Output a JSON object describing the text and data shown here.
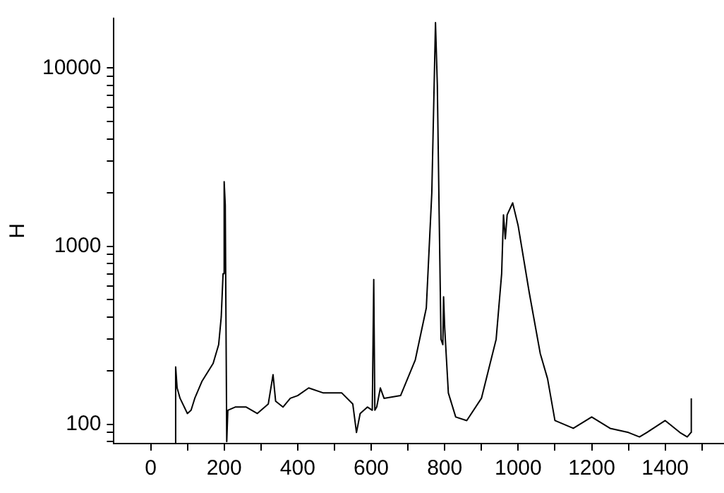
{
  "chart_data": {
    "type": "line",
    "ylabel": "H",
    "log": "y",
    "grid": false,
    "legend": false,
    "marker": "none",
    "line_style": "solid",
    "xlim": [
      -100,
      1560
    ],
    "xticks": [
      0,
      {
        "value": 100,
        "label": null
      },
      200,
      {
        "value": 300,
        "label": null
      },
      400,
      {
        "value": 500,
        "label": null
      },
      600,
      {
        "value": 700,
        "label": null
      },
      800,
      {
        "value": 900,
        "label": null
      },
      1000,
      {
        "value": 1100,
        "label": null
      },
      1200,
      {
        "value": 1300,
        "label": null
      },
      1400,
      {
        "value": 1500,
        "label": null
      }
    ],
    "ylim": [
      78,
      19000
    ],
    "yticks": [
      {
        "value": 80,
        "label": null
      },
      {
        "value": 90,
        "label": null
      },
      100,
      {
        "value": 200,
        "label": null
      },
      {
        "value": 300,
        "label": null
      },
      {
        "value": 400,
        "label": null
      },
      {
        "value": 500,
        "label": null
      },
      {
        "value": 600,
        "label": null
      },
      {
        "value": 700,
        "label": null
      },
      {
        "value": 800,
        "label": null
      },
      {
        "value": 900,
        "label": null
      },
      1000,
      {
        "value": 2000,
        "label": null
      },
      {
        "value": 3000,
        "label": null
      },
      {
        "value": 4000,
        "label": null
      },
      {
        "value": 5000,
        "label": null
      },
      {
        "value": 6000,
        "label": null
      },
      {
        "value": 7000,
        "label": null
      },
      {
        "value": 8000,
        "label": null
      },
      {
        "value": 9000,
        "label": null
      },
      10000
    ],
    "series": [
      {
        "color": "#000000",
        "x": [
          67,
          68,
          72,
          80,
          100,
          110,
          120,
          140,
          170,
          185,
          192,
          197,
          200,
          203,
          207,
          210,
          230,
          260,
          290,
          320,
          333,
          340,
          360,
          380,
          400,
          430,
          470,
          520,
          550,
          560,
          570,
          590,
          603,
          607,
          610,
          615,
          625,
          635,
          680,
          720,
          750,
          765,
          775,
          780,
          785,
          790,
          795,
          797,
          800,
          810,
          830,
          860,
          900,
          940,
          955,
          960,
          965,
          970,
          985,
          1000,
          1030,
          1060,
          1080,
          1100,
          1150,
          1200,
          1250,
          1300,
          1330,
          1350,
          1400,
          1440,
          1460,
          1470,
          1471
        ],
        "values": [
          78,
          210,
          160,
          140,
          115,
          120,
          140,
          175,
          220,
          280,
          400,
          700,
          2300,
          1700,
          80,
          120,
          125,
          125,
          115,
          130,
          190,
          135,
          125,
          140,
          145,
          160,
          150,
          150,
          130,
          90,
          115,
          125,
          120,
          650,
          120,
          125,
          160,
          140,
          145,
          230,
          450,
          2000,
          18000,
          8000,
          1500,
          300,
          280,
          520,
          350,
          150,
          110,
          105,
          140,
          300,
          700,
          1500,
          1100,
          1500,
          1750,
          1300,
          550,
          250,
          180,
          105,
          95,
          110,
          95,
          90,
          85,
          90,
          105,
          90,
          85,
          90,
          140
        ]
      }
    ]
  }
}
